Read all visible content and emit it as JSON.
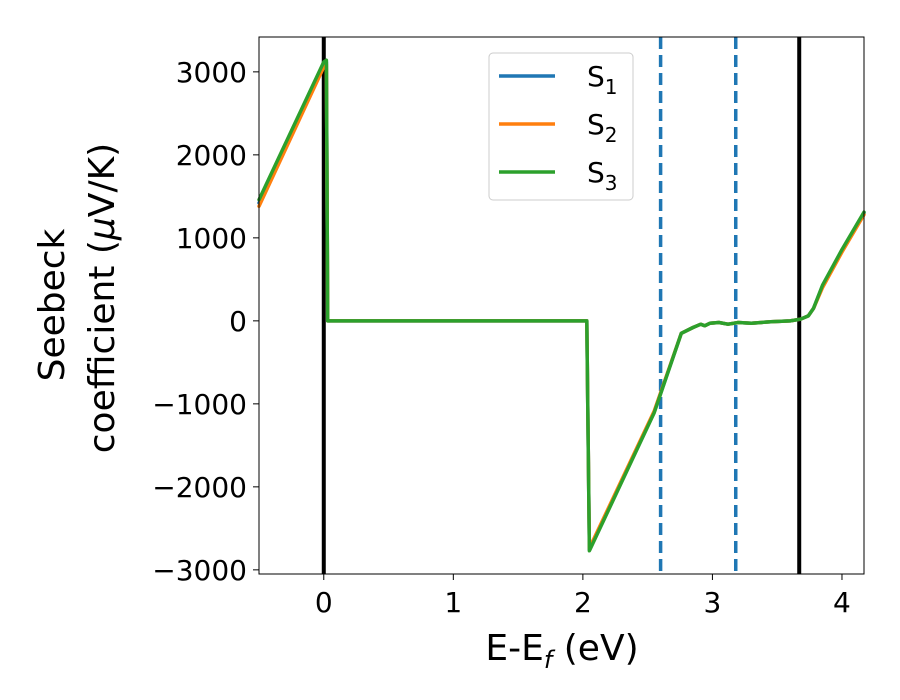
{
  "chart_data": {
    "type": "line",
    "xlabel": "E-E",
    "xlabel_sub": "f",
    "xlabel_unit": " (eV)",
    "ylabel_line1": "Seebeck",
    "ylabel_line2": "coefficient  (",
    "ylabel_mu": "μ",
    "ylabel_unit": "V/K)",
    "xlim": [
      -0.5,
      4.17
    ],
    "ylim": [
      -3050,
      3420
    ],
    "xticks": [
      0,
      1,
      2,
      3,
      4
    ],
    "xtick_labels": [
      "0",
      "1",
      "2",
      "3",
      "4"
    ],
    "yticks": [
      3000,
      2000,
      1000,
      0,
      -1000,
      -2000,
      -3000
    ],
    "ytick_labels": [
      "3000",
      "2000",
      "1000",
      "0",
      "−1000",
      "−2000",
      "−3000"
    ],
    "grid": false,
    "legend_position": "top-center",
    "series": [
      {
        "name": "S",
        "sub": "1",
        "color": "#1f77b4",
        "x": [
          -0.5,
          0.0,
          0.02,
          0.03,
          1.0,
          2.03,
          2.05,
          2.55,
          2.76,
          2.85,
          2.91,
          2.94,
          2.98,
          3.05,
          3.12,
          3.2,
          3.3,
          3.45,
          3.6,
          3.68,
          3.74,
          3.78,
          3.85,
          4.0,
          4.17
        ],
        "y": [
          1420,
          3100,
          3120,
          0,
          0,
          0,
          -2760,
          -1100,
          -150,
          -80,
          -40,
          -60,
          -30,
          -20,
          -40,
          -20,
          -30,
          -10,
          0,
          20,
          60,
          150,
          420,
          850,
          1300
        ]
      },
      {
        "name": "S",
        "sub": "2",
        "color": "#ff7f0e",
        "x": [
          -0.5,
          0.0,
          0.02,
          0.03,
          1.0,
          2.03,
          2.05,
          2.55,
          2.76,
          2.85,
          2.91,
          2.94,
          2.98,
          3.05,
          3.12,
          3.2,
          3.3,
          3.45,
          3.6,
          3.68,
          3.74,
          3.78,
          3.85,
          4.0,
          4.17
        ],
        "y": [
          1380,
          3060,
          3090,
          0,
          0,
          0,
          -2740,
          -1090,
          -150,
          -80,
          -40,
          -60,
          -30,
          -20,
          -40,
          -20,
          -30,
          -10,
          0,
          20,
          60,
          150,
          400,
          830,
          1280
        ]
      },
      {
        "name": "S",
        "sub": "3",
        "color": "#2ca02c",
        "x": [
          -0.5,
          0.0,
          0.02,
          0.03,
          1.0,
          2.03,
          2.05,
          2.55,
          2.76,
          2.85,
          2.91,
          2.94,
          2.98,
          3.05,
          3.12,
          3.2,
          3.3,
          3.45,
          3.6,
          3.68,
          3.74,
          3.78,
          3.85,
          4.0,
          4.17
        ],
        "y": [
          1460,
          3120,
          3140,
          0,
          0,
          0,
          -2770,
          -1110,
          -150,
          -80,
          -40,
          -60,
          -30,
          -20,
          -40,
          -20,
          -30,
          -10,
          0,
          20,
          60,
          150,
          430,
          860,
          1310
        ]
      }
    ],
    "vlines": [
      {
        "x": 0.0,
        "style": "solid",
        "color": "#000000"
      },
      {
        "x": 3.67,
        "style": "solid",
        "color": "#000000"
      },
      {
        "x": 2.6,
        "style": "dashed",
        "color": "#1f77b4"
      },
      {
        "x": 3.18,
        "style": "dashed",
        "color": "#1f77b4"
      }
    ]
  }
}
